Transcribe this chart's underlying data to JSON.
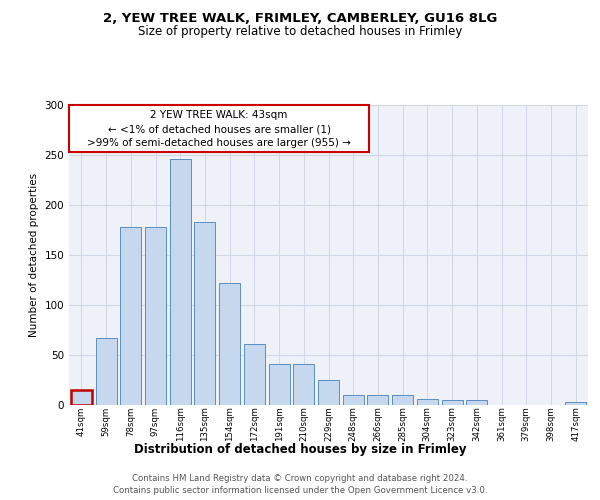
{
  "title1": "2, YEW TREE WALK, FRIMLEY, CAMBERLEY, GU16 8LG",
  "title2": "Size of property relative to detached houses in Frimley",
  "xlabel": "Distribution of detached houses by size in Frimley",
  "ylabel": "Number of detached properties",
  "footer1": "Contains HM Land Registry data © Crown copyright and database right 2024.",
  "footer2": "Contains public sector information licensed under the Open Government Licence v3.0.",
  "annotation_line1": "2 YEW TREE WALK: 43sqm",
  "annotation_line2": "← <1% of detached houses are smaller (1)",
  "annotation_line3": ">99% of semi-detached houses are larger (955) →",
  "bar_labels": [
    "41sqm",
    "59sqm",
    "78sqm",
    "97sqm",
    "116sqm",
    "135sqm",
    "154sqm",
    "172sqm",
    "191sqm",
    "210sqm",
    "229sqm",
    "248sqm",
    "266sqm",
    "285sqm",
    "304sqm",
    "323sqm",
    "342sqm",
    "361sqm",
    "379sqm",
    "398sqm",
    "417sqm"
  ],
  "bar_values": [
    15,
    67,
    178,
    178,
    246,
    183,
    122,
    61,
    41,
    41,
    25,
    10,
    10,
    10,
    6,
    5,
    5,
    0,
    0,
    0,
    3
  ],
  "bar_color": "#c5d8ed",
  "bar_edge_color": "#5a8fc0",
  "highlight_bar_index": 0,
  "highlight_color": "#c00000",
  "ylim": [
    0,
    300
  ],
  "yticks": [
    0,
    50,
    100,
    150,
    200,
    250,
    300
  ],
  "grid_color": "#d0d8e8",
  "bg_color": "#eef2f8",
  "annotation_box_color": "#ffffff",
  "annotation_box_edge": "#cc0000"
}
